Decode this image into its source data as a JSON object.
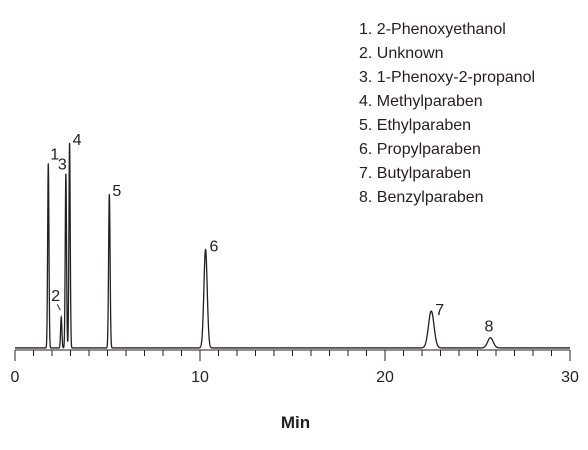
{
  "chart_data": {
    "type": "line",
    "title": "",
    "xlabel": "Min",
    "ylabel": "",
    "xlim": [
      0,
      30
    ],
    "ylim": [
      0,
      1
    ],
    "x_ticks": [
      0,
      10,
      20,
      30
    ],
    "x_minor_step": 1,
    "grid": false,
    "legend_position": "top-right",
    "baseline_level": 0.01,
    "peaks": [
      {
        "label": "1",
        "time": 1.8,
        "height": 0.9,
        "width": 0.035
      },
      {
        "label": "2",
        "time": 2.5,
        "height": 0.15,
        "width": 0.035
      },
      {
        "label": "3",
        "time": 2.75,
        "height": 0.85,
        "width": 0.035
      },
      {
        "label": "4",
        "time": 2.95,
        "height": 1.0,
        "width": 0.035
      },
      {
        "label": "5",
        "time": 5.1,
        "height": 0.75,
        "width": 0.04
      },
      {
        "label": "6",
        "time": 10.3,
        "height": 0.48,
        "width": 0.09
      },
      {
        "label": "7",
        "time": 22.5,
        "height": 0.18,
        "width": 0.15
      },
      {
        "label": "8",
        "time": 25.7,
        "height": 0.05,
        "width": 0.15
      }
    ],
    "legend": [
      "1. 2-Phenoxyethanol",
      "2. Unknown",
      "3. 1-Phenoxy-2-propanol",
      "4. Methylparaben",
      "5. Ethylparaben",
      "6. Propylparaben",
      "7. Butylparaben",
      "8. Benzylparaben"
    ]
  }
}
